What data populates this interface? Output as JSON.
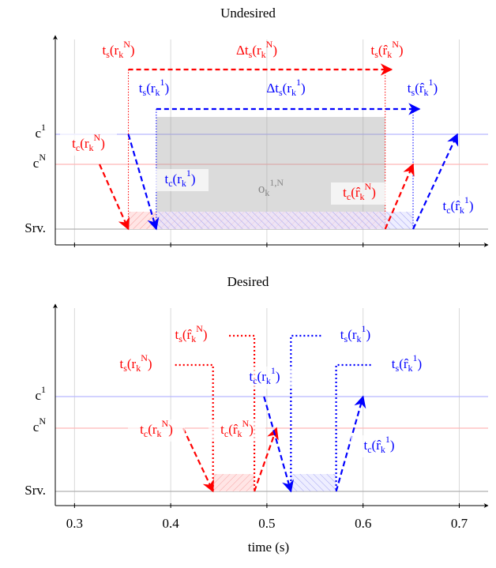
{
  "chart_data": [
    {
      "type": "timeline",
      "title": "Undesired",
      "rows": [
        "c^1",
        "c^N",
        "Srv."
      ],
      "xlim": [
        0.28,
        0.73
      ],
      "xticks": [
        0.3,
        0.4,
        0.5,
        0.6,
        0.7
      ],
      "grid": true,
      "overlap_label": "o_k^{1,N}",
      "sends": [
        {
          "color": "#ff0000",
          "start": 0.356,
          "end": 0.623,
          "start_label": "t_s(r_k^N)",
          "end_label": "t_s(r̂_k^N)",
          "span_label": "Δt_s(r_k^N)"
        },
        {
          "color": "#0000ff",
          "start": 0.385,
          "end": 0.652,
          "start_label": "t_s(r_k^1)",
          "end_label": "t_s(r̂_k^1)",
          "span_label": "Δt_s(r_k^1)"
        }
      ],
      "arrows": [
        {
          "color": "#ff0000",
          "from": 0.326,
          "to": 0.356,
          "from_row": "c^N",
          "to_row": "Srv.",
          "label": "t_c(r_k^N)"
        },
        {
          "color": "#0000ff",
          "from": 0.356,
          "to": 0.385,
          "from_row": "c^1",
          "to_row": "Srv.",
          "label": "t_c(r_k^1)"
        },
        {
          "color": "#ff0000",
          "from": 0.623,
          "to": 0.652,
          "from_row": "Srv.",
          "to_row": "c^N",
          "label": "t_c(r̂_k^N)"
        },
        {
          "color": "#0000ff",
          "from": 0.652,
          "to": 0.698,
          "from_row": "Srv.",
          "to_row": "c^1",
          "label": "t_c(r̂_k^1)"
        }
      ]
    },
    {
      "type": "timeline",
      "title": "Desired",
      "rows": [
        "c^1",
        "c^N",
        "Srv."
      ],
      "xlim": [
        0.28,
        0.73
      ],
      "xticks": [
        0.3,
        0.4,
        0.5,
        0.6,
        0.7
      ],
      "grid": true,
      "x_label": "time (s)",
      "sends": [
        {
          "color": "#ff0000",
          "start": 0.444,
          "end": 0.487,
          "start_label": "t_s(r_k^N)",
          "end_label": "t_s(r̂_k^N)"
        },
        {
          "color": "#0000ff",
          "start": 0.525,
          "end": 0.572,
          "start_label": "t_s(r_k^1)",
          "end_label": "t_s(r̂_k^1)"
        }
      ],
      "arrows": [
        {
          "color": "#ff0000",
          "from": 0.413,
          "to": 0.444,
          "from_row": "c^N",
          "to_row": "Srv.",
          "label": "t_c(r_k^N)"
        },
        {
          "color": "#ff0000",
          "from": 0.487,
          "to": 0.51,
          "from_row": "Srv.",
          "to_row": "c^N",
          "label": "t_c(r̂_k^N)"
        },
        {
          "color": "#0000ff",
          "from": 0.497,
          "to": 0.525,
          "from_row": "c^1",
          "to_row": "Srv.",
          "label": "t_c(r_k^1)"
        },
        {
          "color": "#0000ff",
          "from": 0.572,
          "to": 0.6,
          "from_row": "Srv.",
          "to_row": "c^1",
          "label": "t_c(r̂_k^1)"
        }
      ]
    }
  ]
}
